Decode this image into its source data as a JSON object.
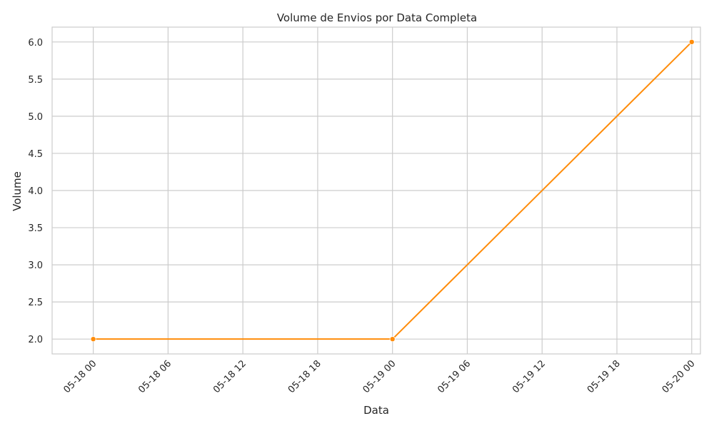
{
  "chart_data": {
    "type": "line",
    "title": "Volume de Envios por Data Completa",
    "xlabel": "Data",
    "ylabel": "Volume",
    "x_ticks": [
      "05-18 00",
      "05-18 06",
      "05-18 12",
      "05-18 18",
      "05-19 00",
      "05-19 06",
      "05-19 12",
      "05-19 18",
      "05-20 00"
    ],
    "y_ticks": [
      "2.0",
      "2.5",
      "3.0",
      "3.5",
      "4.0",
      "4.5",
      "5.0",
      "5.5",
      "6.0"
    ],
    "xlim_hours_from_first_tick": [
      -3.3,
      48.7
    ],
    "ylim": [
      1.8,
      6.2
    ],
    "series": [
      {
        "x": [
          "2024-05-18 00:00",
          "2024-05-19 00:00",
          "2024-05-20 00:00"
        ],
        "values": [
          2,
          2,
          6
        ],
        "color": "#ff8c0a",
        "marker": "circle"
      }
    ],
    "grid": true,
    "background": "#ffffff",
    "grid_color": "#cccccc"
  }
}
